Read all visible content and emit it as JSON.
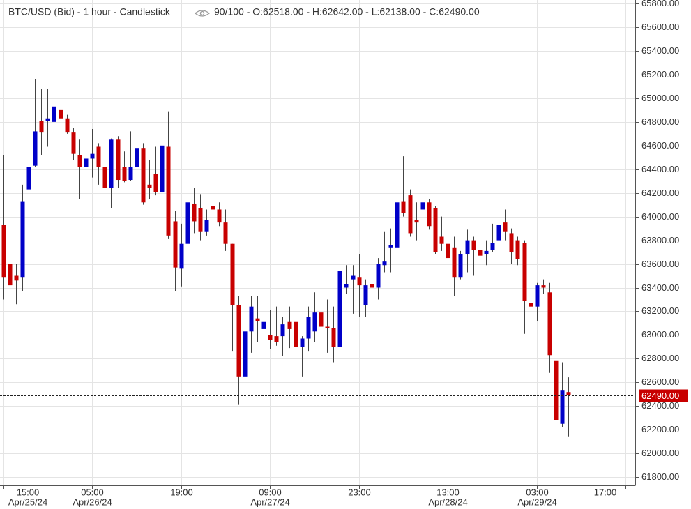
{
  "chart_data": {
    "type": "candlestick",
    "title": "BTC/USD (Bid) - 1 hour - Candlestick",
    "info": "90/100 - O:62518.00 - H:62642.00 - L:62138.00 - C:62490.00",
    "up_color": "#0000c8",
    "down_color": "#c80000",
    "grid": true,
    "ylim": [
      61730,
      65830
    ],
    "xlim": [
      -0.5,
      99.5
    ],
    "yticks": [
      {
        "value": 61800,
        "label": "61800.00"
      },
      {
        "value": 62000,
        "label": "62000.00"
      },
      {
        "value": 62200,
        "label": "62200.00"
      },
      {
        "value": 62400,
        "label": "62400.00"
      },
      {
        "value": 62600,
        "label": "62600.00"
      },
      {
        "value": 62800,
        "label": "62800.00"
      },
      {
        "value": 63000,
        "label": "63000.00"
      },
      {
        "value": 63200,
        "label": "63200.00"
      },
      {
        "value": 63400,
        "label": "63400.00"
      },
      {
        "value": 63600,
        "label": "63600.00"
      },
      {
        "value": 63800,
        "label": "63800.00"
      },
      {
        "value": 64000,
        "label": "64000.00"
      },
      {
        "value": 64200,
        "label": "64200.00"
      },
      {
        "value": 64400,
        "label": "64400.00"
      },
      {
        "value": 64600,
        "label": "64600.00"
      },
      {
        "value": 64800,
        "label": "64800.00"
      },
      {
        "value": 65000,
        "label": "65000.00"
      },
      {
        "value": 65200,
        "label": "65200.00"
      },
      {
        "value": 65400,
        "label": "65400.00"
      },
      {
        "value": 65600,
        "label": "65600.00"
      },
      {
        "value": 65800,
        "label": "65800.00"
      }
    ],
    "xticks": [
      {
        "value": 0,
        "label": "15:00",
        "date": "Apr/25/24"
      },
      {
        "value": 14,
        "label": "05:00",
        "date": "Apr/26/24"
      },
      {
        "value": 28,
        "label": "19:00"
      },
      {
        "value": 42,
        "label": "09:00",
        "date": "Apr/27/24"
      },
      {
        "value": 56,
        "label": "23:00"
      },
      {
        "value": 70,
        "label": "13:00",
        "date": "Apr/28/24"
      },
      {
        "value": 84,
        "label": "03:00",
        "date": "Apr/29/24"
      },
      {
        "value": 98,
        "label": "17:00"
      }
    ],
    "last_price": {
      "value": 62490,
      "label": "62490.00"
    },
    "open": [
      63930,
      63600,
      63500,
      63490,
      64230,
      64430,
      64810,
      64810,
      64800,
      64900,
      64830,
      64710,
      64520,
      64420,
      64490,
      64590,
      64420,
      64240,
      64650,
      64420,
      64310,
      64420,
      64580,
      64270,
      64360,
      64210,
      64590,
      63960,
      63560,
      63770,
      64110,
      64070,
      63870,
      64090,
      64060,
      63950,
      63770,
      63250,
      62650,
      63030,
      63140,
      63050,
      63000,
      62990,
      62990,
      63110,
      63110,
      62900,
      62970,
      63030,
      63190,
      63070,
      63060,
      62900,
      63400,
      63470,
      63490,
      63250,
      63430,
      63400,
      63590,
      63740,
      63740,
      64130,
      64180,
      63970,
      64060,
      64120,
      64070,
      63830,
      63770,
      63740,
      63490,
      63680,
      63800,
      63720,
      63680,
      63720,
      63800,
      63950,
      63860,
      63800,
      63780,
      63270,
      63240,
      63420,
      63360,
      62780,
      62250,
      62518
    ],
    "high": [
      64520,
      63710,
      63600,
      64270,
      64590,
      65160,
      65080,
      65080,
      65080,
      65430,
      64860,
      64750,
      64650,
      64650,
      64740,
      64620,
      64530,
      64660,
      64680,
      64550,
      64720,
      64800,
      64620,
      64480,
      64590,
      64620,
      64890,
      64050,
      63940,
      64120,
      64240,
      64190,
      64060,
      64180,
      64120,
      64060,
      63770,
      63330,
      63380,
      63330,
      63330,
      63240,
      63210,
      63240,
      63150,
      63240,
      63150,
      62990,
      63240,
      63360,
      63540,
      63300,
      63240,
      63740,
      63590,
      63590,
      63680,
      63470,
      63590,
      63650,
      63870,
      63900,
      64300,
      64510,
      64230,
      64120,
      64130,
      64150,
      64090,
      64000,
      63880,
      63830,
      63710,
      63890,
      63830,
      63770,
      63800,
      63940,
      64100,
      64060,
      63900,
      63830,
      63800,
      63300,
      63440,
      63470,
      63440,
      62860,
      62770,
      62642
    ],
    "low": [
      63300,
      62840,
      63260,
      63370,
      64170,
      64420,
      64520,
      64590,
      64550,
      64530,
      64700,
      64480,
      64150,
      63970,
      64330,
      64270,
      64210,
      64070,
      64240,
      64290,
      64300,
      64390,
      64100,
      64150,
      64180,
      63760,
      63810,
      63370,
      63410,
      63560,
      63860,
      63800,
      63840,
      64000,
      63920,
      63710,
      62860,
      62410,
      62560,
      62850,
      62940,
      62940,
      62880,
      62910,
      62820,
      62890,
      62740,
      62650,
      62860,
      62940,
      63060,
      62850,
      62770,
      62830,
      63350,
      63180,
      63150,
      63150,
      63240,
      63300,
      63530,
      63530,
      63560,
      64000,
      63830,
      63800,
      63770,
      63890,
      63680,
      63710,
      63620,
      63330,
      63470,
      63530,
      63500,
      63480,
      63590,
      63700,
      63760,
      63800,
      63600,
      63590,
      63010,
      62850,
      63120,
      63350,
      62680,
      62270,
      62220,
      62138
    ],
    "close": [
      63490,
      63420,
      63460,
      64130,
      64420,
      64720,
      64710,
      64830,
      64930,
      64830,
      64710,
      64530,
      64420,
      64490,
      64530,
      64420,
      64240,
      64650,
      64310,
      64300,
      64420,
      64580,
      64120,
      64240,
      64210,
      64600,
      63840,
      63570,
      63770,
      64120,
      63960,
      63870,
      63970,
      64060,
      63950,
      63770,
      63250,
      62650,
      63030,
      63240,
      63120,
      63110,
      62960,
      62940,
      63090,
      63050,
      62900,
      62970,
      63150,
      63190,
      63070,
      63060,
      62900,
      63540,
      63430,
      63500,
      63420,
      63420,
      63400,
      63600,
      63620,
      63760,
      64120,
      64030,
      63860,
      63950,
      64120,
      63920,
      63700,
      63770,
      63650,
      63490,
      63680,
      63800,
      63720,
      63670,
      63710,
      63780,
      63930,
      63870,
      63700,
      63640,
      63290,
      63240,
      63420,
      63400,
      62830,
      62280,
      62530,
      62490
    ]
  }
}
